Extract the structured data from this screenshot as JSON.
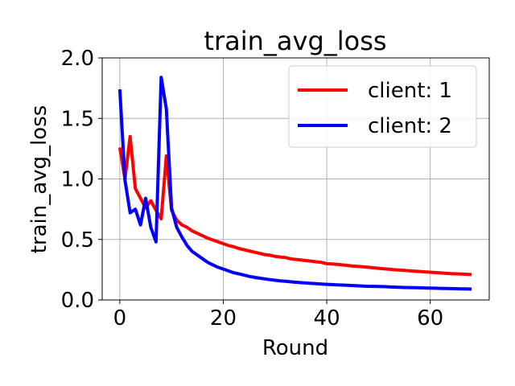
{
  "chart_data": {
    "type": "line",
    "title": "train_avg_loss",
    "xlabel": "Round",
    "ylabel": "train_avg_loss",
    "xlim": [
      -3.4,
      71.4
    ],
    "ylim": [
      0.0,
      2.0
    ],
    "xticks": [
      0,
      20,
      40,
      60
    ],
    "yticks": [
      0.0,
      0.5,
      1.0,
      1.5,
      2.0
    ],
    "xtick_labels": [
      "0",
      "20",
      "40",
      "60"
    ],
    "ytick_labels": [
      "0.0",
      "0.5",
      "1.0",
      "1.5",
      "2.0"
    ],
    "grid": true,
    "legend_position": "top-right",
    "x": [
      0,
      1,
      2,
      3,
      4,
      5,
      6,
      7,
      8,
      9,
      10,
      11,
      12,
      13,
      14,
      15,
      16,
      17,
      18,
      19,
      20,
      21,
      22,
      23,
      24,
      25,
      26,
      27,
      28,
      29,
      30,
      31,
      32,
      33,
      34,
      35,
      36,
      37,
      38,
      39,
      40,
      41,
      42,
      43,
      44,
      45,
      46,
      47,
      48,
      49,
      50,
      51,
      52,
      53,
      54,
      55,
      56,
      57,
      58,
      59,
      60,
      61,
      62,
      63,
      64,
      65,
      66,
      67,
      68
    ],
    "series": [
      {
        "name": "client: 1",
        "color": "#ff0000",
        "values": [
          1.26,
          1.0,
          1.35,
          0.92,
          0.84,
          0.76,
          0.82,
          0.74,
          0.67,
          1.19,
          0.74,
          0.66,
          0.62,
          0.6,
          0.57,
          0.55,
          0.53,
          0.51,
          0.495,
          0.48,
          0.465,
          0.45,
          0.44,
          0.425,
          0.415,
          0.405,
          0.395,
          0.385,
          0.375,
          0.37,
          0.36,
          0.355,
          0.35,
          0.34,
          0.335,
          0.33,
          0.325,
          0.32,
          0.315,
          0.31,
          0.3,
          0.297,
          0.294,
          0.29,
          0.285,
          0.28,
          0.277,
          0.274,
          0.27,
          0.266,
          0.262,
          0.258,
          0.254,
          0.25,
          0.247,
          0.244,
          0.241,
          0.238,
          0.235,
          0.232,
          0.229,
          0.226,
          0.223,
          0.22,
          0.218,
          0.216,
          0.214,
          0.212,
          0.21
        ]
      },
      {
        "name": "client: 2",
        "color": "#0000ff",
        "values": [
          1.74,
          0.99,
          0.72,
          0.75,
          0.62,
          0.84,
          0.6,
          0.48,
          1.84,
          1.58,
          0.76,
          0.6,
          0.52,
          0.45,
          0.4,
          0.37,
          0.34,
          0.31,
          0.29,
          0.27,
          0.255,
          0.24,
          0.225,
          0.215,
          0.205,
          0.195,
          0.187,
          0.18,
          0.174,
          0.168,
          0.163,
          0.158,
          0.154,
          0.15,
          0.146,
          0.143,
          0.14,
          0.137,
          0.134,
          0.131,
          0.129,
          0.127,
          0.125,
          0.123,
          0.121,
          0.119,
          0.117,
          0.115,
          0.113,
          0.112,
          0.111,
          0.11,
          0.108,
          0.106,
          0.104,
          0.103,
          0.102,
          0.101,
          0.1,
          0.099,
          0.098,
          0.097,
          0.096,
          0.095,
          0.094,
          0.093,
          0.092,
          0.091,
          0.09
        ]
      }
    ]
  }
}
